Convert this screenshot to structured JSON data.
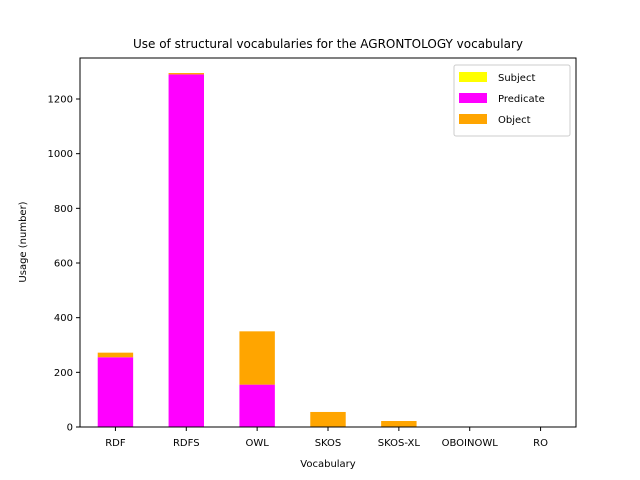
{
  "chart_data": {
    "type": "bar",
    "stacked": true,
    "title": "Use of structural vocabularies for the AGRONTOLOGY vocabulary",
    "xlabel": "Vocabulary",
    "ylabel": "Usage (number)",
    "categories": [
      "RDF",
      "RDFS",
      "OWL",
      "SKOS",
      "SKOS-XL",
      "OBOINOWL",
      "RO"
    ],
    "ylim": [
      0,
      1350
    ],
    "yticks": [
      0,
      200,
      400,
      600,
      800,
      1000,
      1200
    ],
    "legend_position": "top-right",
    "grid": false,
    "series": [
      {
        "name": "Subject",
        "color": "#ffff00",
        "values": [
          0,
          0,
          0,
          0,
          0,
          0,
          0
        ]
      },
      {
        "name": "Predicate",
        "color": "#ff00ff",
        "values": [
          255,
          1290,
          155,
          0,
          0,
          0,
          0
        ]
      },
      {
        "name": "Object",
        "color": "#ffa500",
        "values": [
          17,
          5,
          195,
          55,
          22,
          0,
          0
        ]
      }
    ]
  }
}
